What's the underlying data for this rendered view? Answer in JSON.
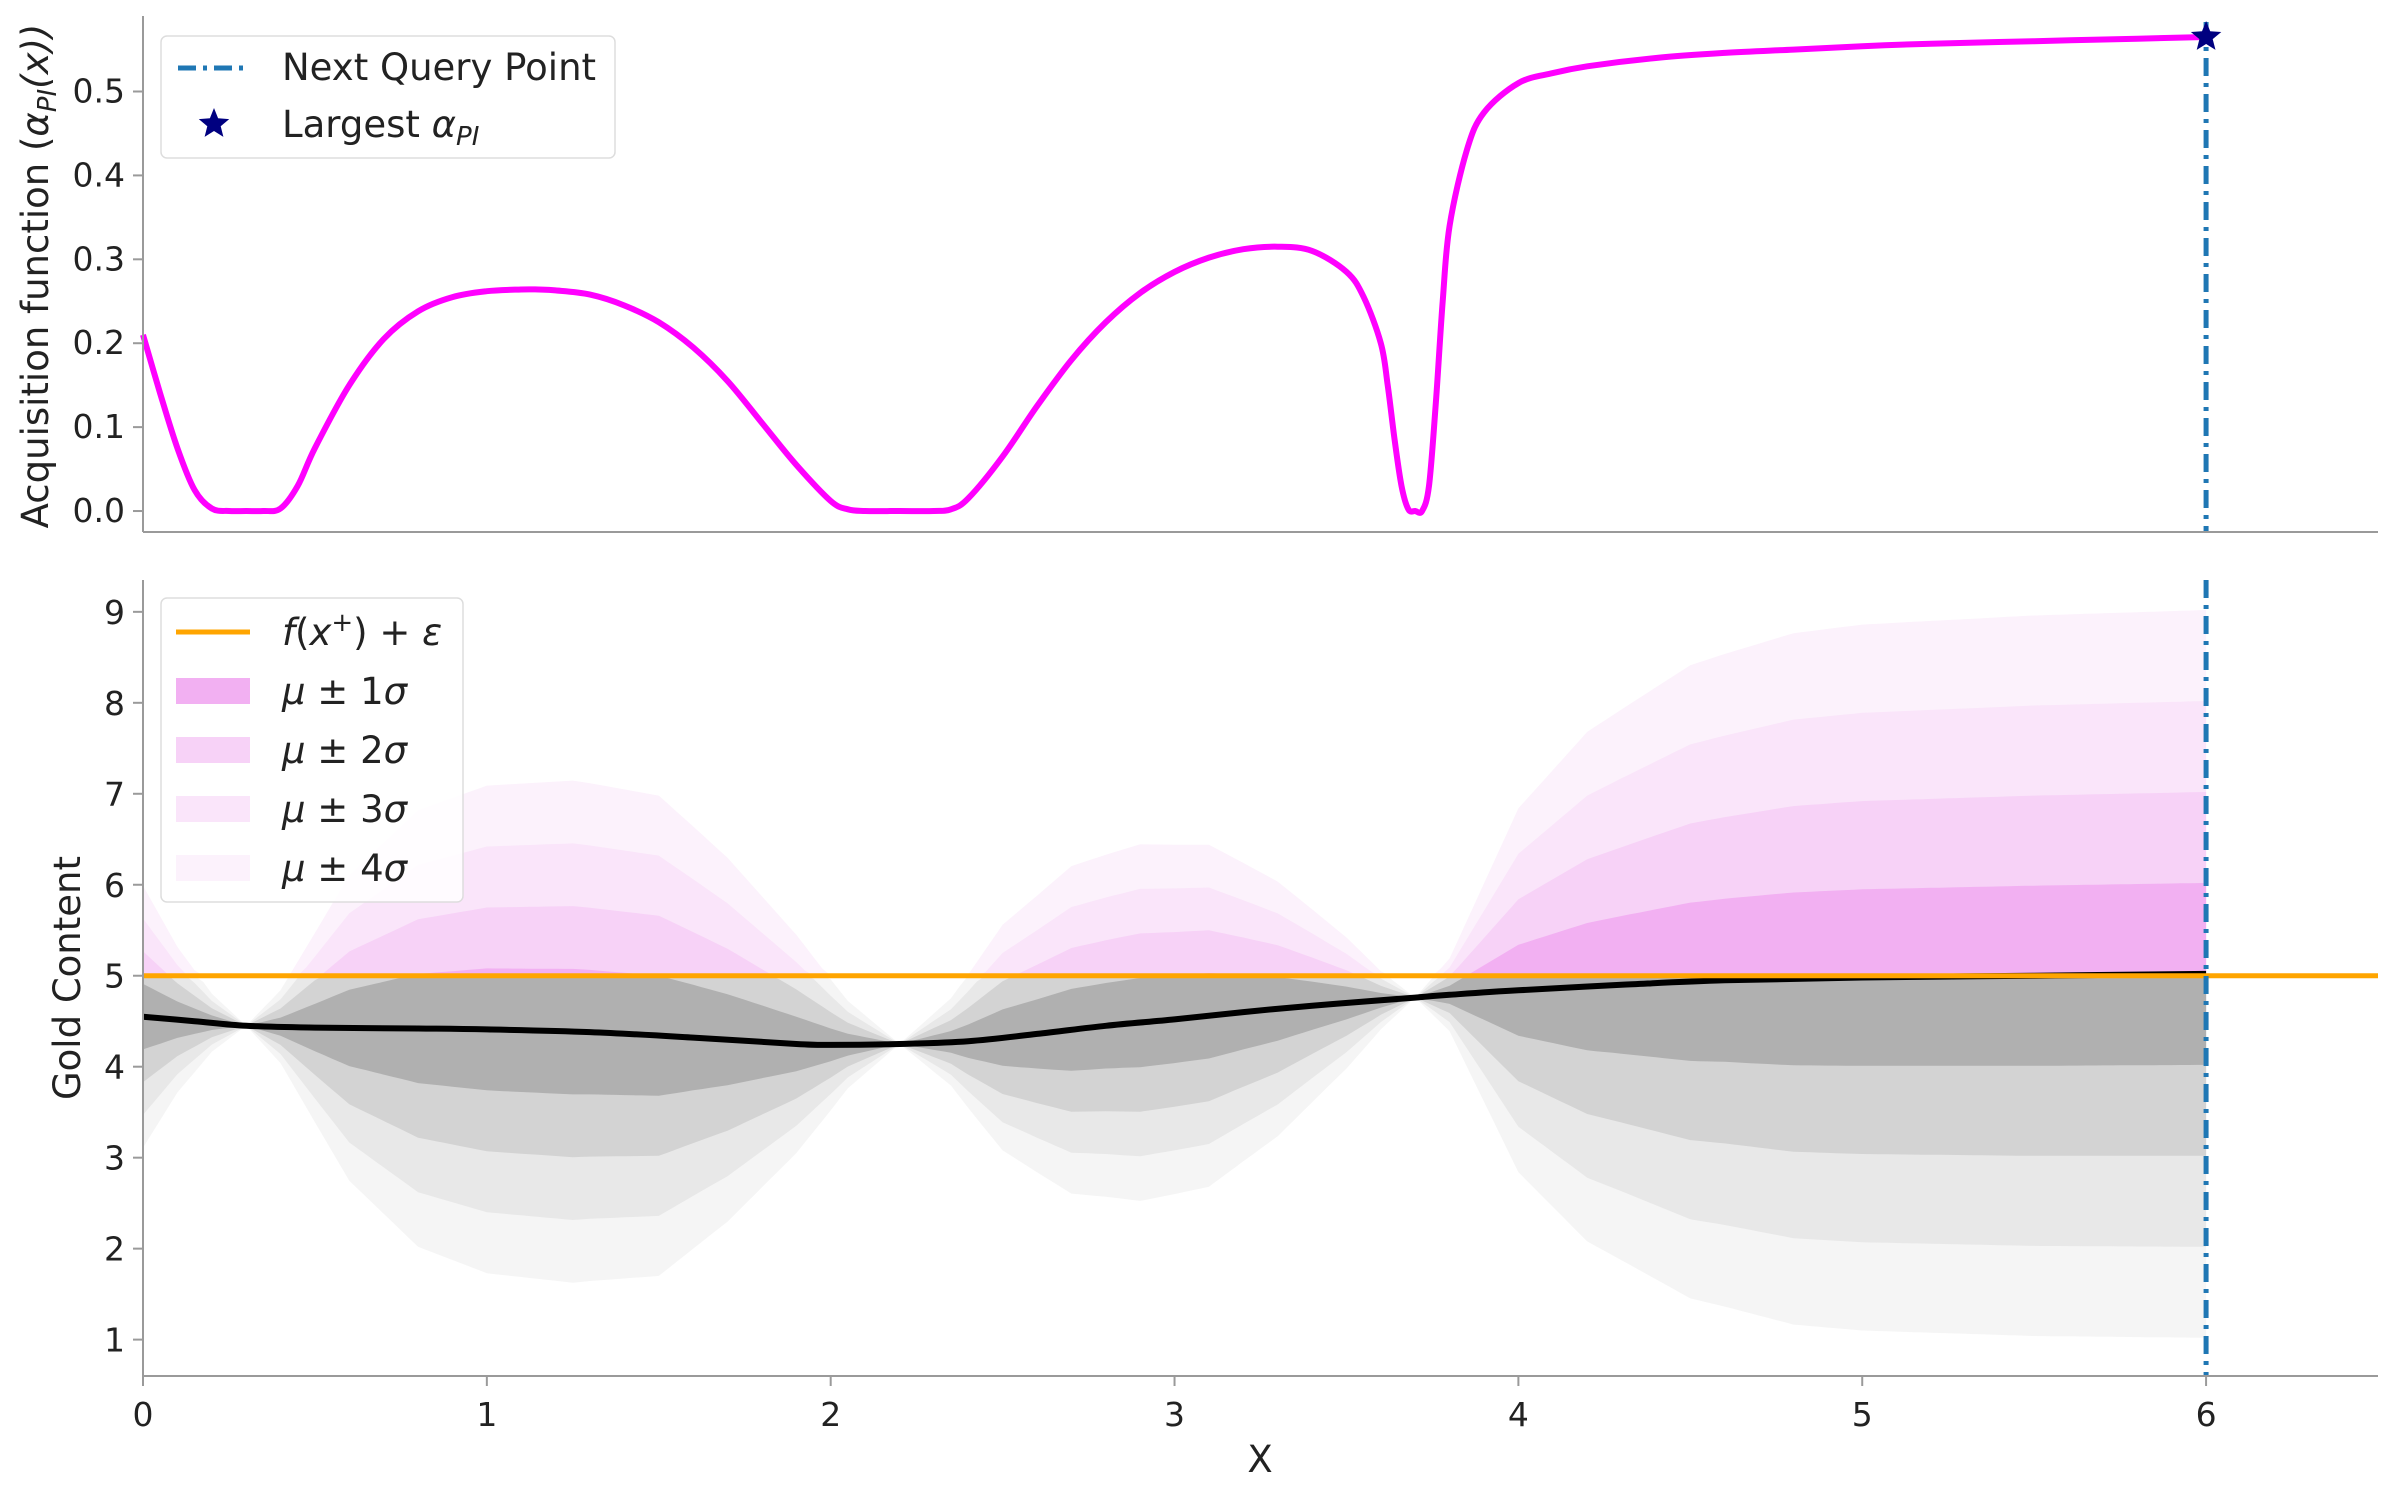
{
  "chart_data": [
    {
      "type": "line",
      "ylabel_parts": {
        "base": "Acquisition function (",
        "alpha": "α",
        "sub": "PI",
        "arg": "(x))"
      },
      "xlim": [
        0,
        6.5
      ],
      "ylim": [
        -0.025,
        0.59
      ],
      "yticks": [
        0.0,
        0.1,
        0.2,
        0.3,
        0.4,
        0.5
      ],
      "ytick_labels": [
        "0.0",
        "0.1",
        "0.2",
        "0.3",
        "0.4",
        "0.5"
      ],
      "series": [
        {
          "color": "#ff00ff",
          "x": [
            0,
            0.05,
            0.1,
            0.15,
            0.2,
            0.25,
            0.3,
            0.35,
            0.4,
            0.45,
            0.5,
            0.6,
            0.7,
            0.8,
            0.9,
            1.0,
            1.1,
            1.15,
            1.2,
            1.3,
            1.4,
            1.5,
            1.6,
            1.7,
            1.8,
            1.9,
            2.0,
            2.05,
            2.1,
            2.2,
            2.3,
            2.35,
            2.4,
            2.5,
            2.6,
            2.7,
            2.8,
            2.9,
            3.0,
            3.1,
            3.2,
            3.3,
            3.4,
            3.5,
            3.55,
            3.6,
            3.62,
            3.64,
            3.66,
            3.68,
            3.7,
            3.72,
            3.74,
            3.76,
            3.78,
            3.8,
            3.85,
            3.9,
            4.0,
            4.1,
            4.2,
            4.4,
            4.6,
            4.8,
            5.0,
            5.2,
            5.5,
            5.8,
            6.0
          ],
          "y": [
            0.21,
            0.14,
            0.075,
            0.025,
            0.003,
            0.0,
            0.0,
            0.0,
            0.003,
            0.03,
            0.075,
            0.15,
            0.205,
            0.238,
            0.255,
            0.262,
            0.264,
            0.264,
            0.263,
            0.258,
            0.245,
            0.225,
            0.195,
            0.155,
            0.105,
            0.055,
            0.012,
            0.002,
            0.0,
            0.0,
            0.0,
            0.002,
            0.015,
            0.065,
            0.125,
            0.18,
            0.225,
            0.26,
            0.285,
            0.302,
            0.312,
            0.315,
            0.31,
            0.285,
            0.255,
            0.2,
            0.15,
            0.085,
            0.03,
            0.002,
            0.0,
            0.0,
            0.03,
            0.13,
            0.25,
            0.34,
            0.43,
            0.475,
            0.51,
            0.522,
            0.53,
            0.54,
            0.546,
            0.55,
            0.554,
            0.557,
            0.56,
            0.563,
            0.565
          ]
        }
      ],
      "query_x": 6.0,
      "marker": {
        "x": 6.0,
        "y": 0.565,
        "color": "#000080"
      },
      "legend": {
        "position": "upper-left",
        "items": [
          {
            "label": "Next Query Point",
            "kind": "dashdot",
            "color": "#1f77b4"
          },
          {
            "label_parts": {
              "base": "Largest ",
              "alpha": "α",
              "sub": "PI"
            },
            "kind": "star",
            "color": "#000080"
          }
        ]
      }
    },
    {
      "type": "area",
      "xlabel": "X",
      "ylabel": "Gold Content",
      "xlim": [
        0,
        6.5
      ],
      "ylim": [
        0.6,
        9.35
      ],
      "xticks": [
        0,
        1,
        2,
        3,
        4,
        5,
        6
      ],
      "xtick_labels": [
        "0",
        "1",
        "2",
        "3",
        "4",
        "5",
        "6"
      ],
      "yticks": [
        1,
        2,
        3,
        4,
        5,
        6,
        7,
        8,
        9
      ],
      "ytick_labels": [
        "1",
        "2",
        "3",
        "4",
        "5",
        "6",
        "7",
        "8",
        "9"
      ],
      "threshold": 5.0,
      "threshold_color": "#ffa500",
      "mean_color": "#000000",
      "band_colors_above": [
        "#f2b0f2",
        "#f7d2f7",
        "#fae5fa",
        "#fcf2fc"
      ],
      "band_colors_below": [
        "#b0b0b0",
        "#d3d3d3",
        "#e8e8e8",
        "#f5f5f5"
      ],
      "mean": {
        "x": [
          0,
          0.15,
          0.3,
          0.5,
          0.8,
          1.0,
          1.3,
          1.6,
          1.9,
          2.0,
          2.2,
          2.4,
          2.6,
          2.8,
          3.0,
          3.2,
          3.4,
          3.6,
          3.7,
          3.8,
          4.0,
          4.3,
          4.6,
          5.0,
          5.5,
          6.0
        ],
        "y": [
          4.55,
          4.5,
          4.45,
          4.43,
          4.42,
          4.41,
          4.38,
          4.32,
          4.25,
          4.24,
          4.25,
          4.28,
          4.36,
          4.45,
          4.52,
          4.6,
          4.67,
          4.73,
          4.76,
          4.79,
          4.84,
          4.9,
          4.95,
          4.98,
          5.0,
          5.02
        ]
      },
      "sigma": {
        "x": [
          0,
          0.1,
          0.2,
          0.3,
          0.4,
          0.6,
          0.8,
          1.0,
          1.25,
          1.5,
          1.7,
          1.9,
          2.05,
          2.2,
          2.35,
          2.5,
          2.7,
          2.9,
          3.1,
          3.3,
          3.5,
          3.6,
          3.7,
          3.8,
          3.9,
          4.0,
          4.2,
          4.5,
          4.8,
          5.0,
          5.5,
          6.0
        ],
        "y": [
          0.36,
          0.2,
          0.08,
          0.0,
          0.1,
          0.42,
          0.6,
          0.67,
          0.69,
          0.66,
          0.5,
          0.3,
          0.12,
          0.0,
          0.12,
          0.31,
          0.45,
          0.49,
          0.47,
          0.35,
          0.18,
          0.08,
          0.0,
          0.1,
          0.3,
          0.5,
          0.7,
          0.87,
          0.95,
          0.97,
          0.99,
          1.0
        ]
      },
      "legend": {
        "position": "upper-left",
        "items": [
          {
            "label_parts": [
              "f",
              "(",
              "x",
              "+",
              ") + ",
              "ε"
            ],
            "kind": "line",
            "color": "#ffa500"
          },
          {
            "label_parts": [
              "μ",
              " ± 1",
              "σ"
            ],
            "kind": "patch",
            "color": "#f2b0f2"
          },
          {
            "label_parts": [
              "μ",
              " ± 2",
              "σ"
            ],
            "kind": "patch",
            "color": "#f7d2f7"
          },
          {
            "label_parts": [
              "μ",
              " ± 3",
              "σ"
            ],
            "kind": "patch",
            "color": "#fae5fa"
          },
          {
            "label_parts": [
              "μ",
              " ± 4",
              "σ"
            ],
            "kind": "patch",
            "color": "#fcf2fc"
          }
        ]
      }
    }
  ]
}
